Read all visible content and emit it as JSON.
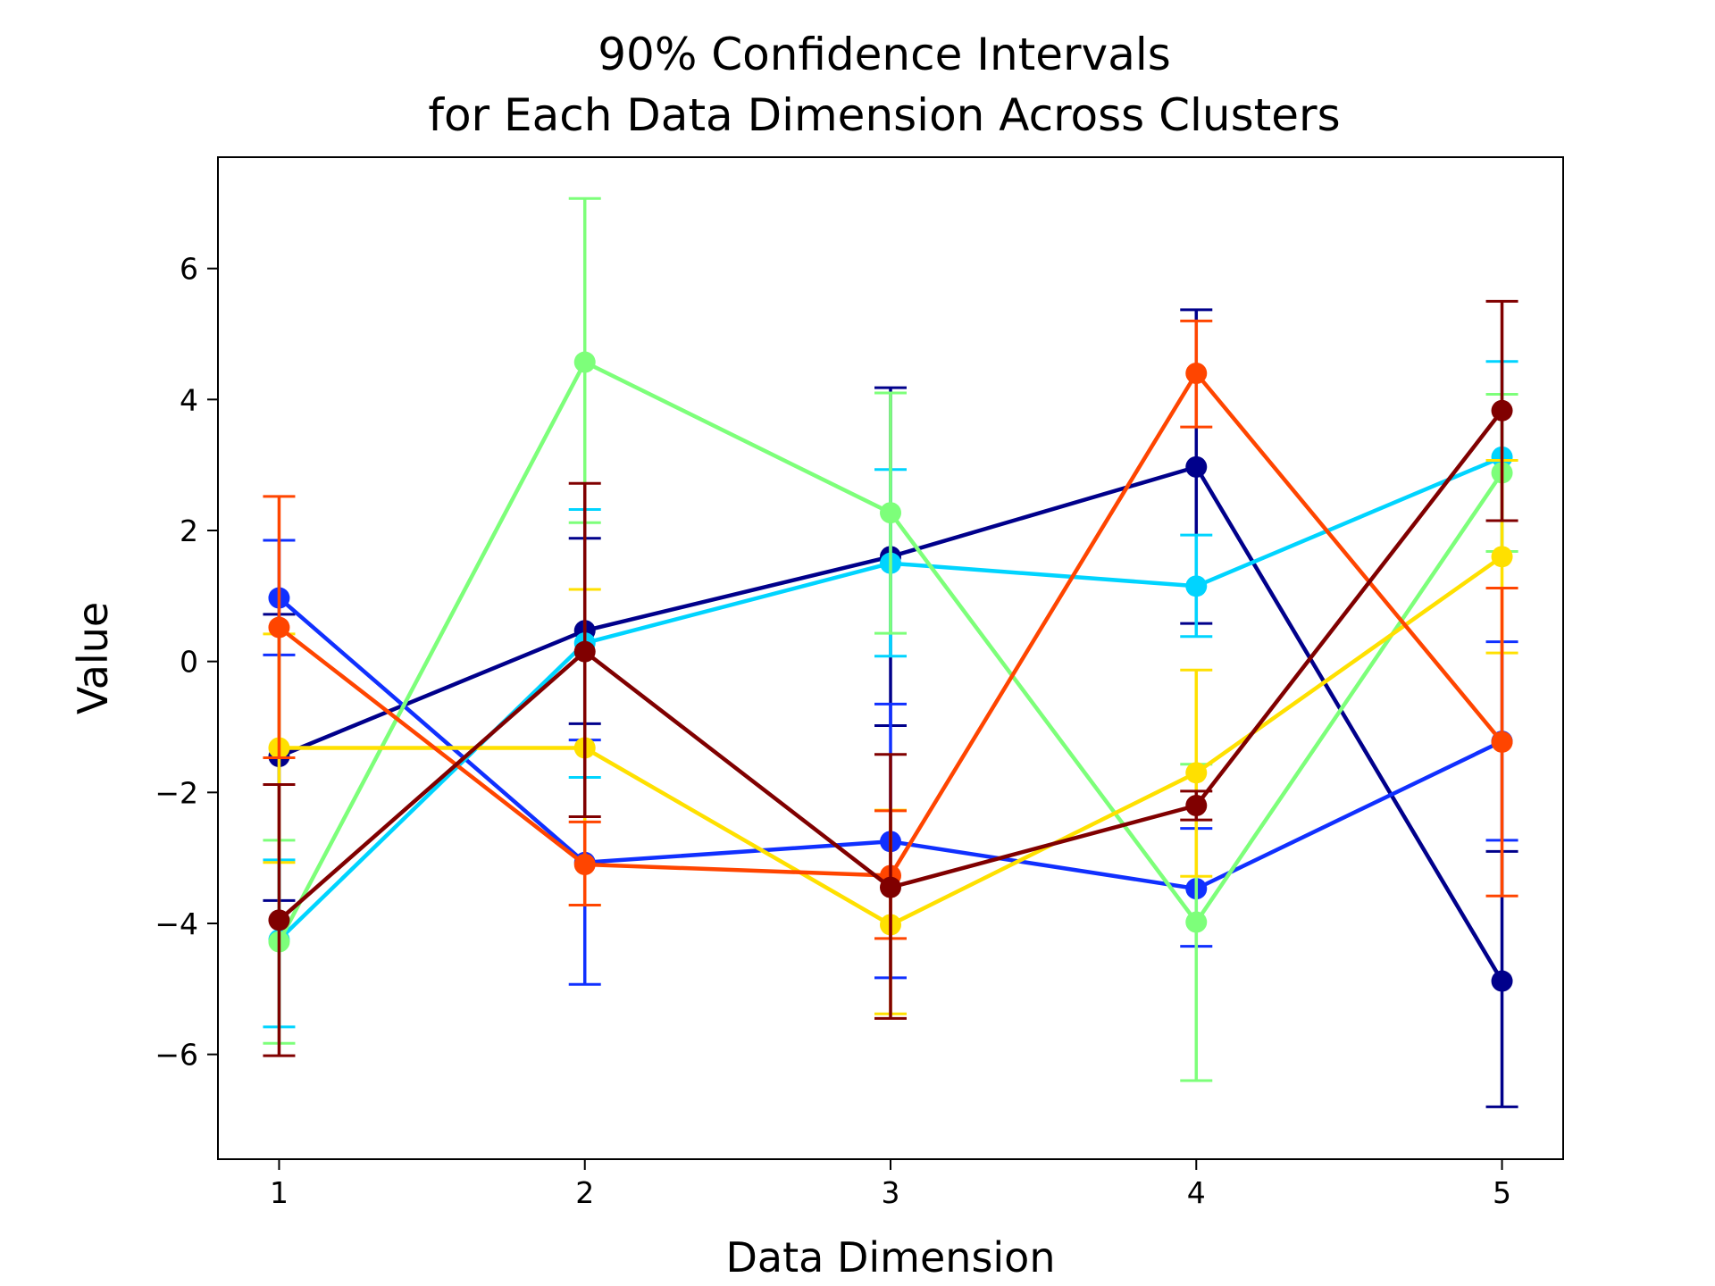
{
  "chart_data": {
    "type": "line",
    "title_lines": [
      "90% Confidence Intervals",
      "for Each Data Dimension Across Clusters"
    ],
    "xlabel": "Data Dimension",
    "ylabel": "Value",
    "x": [
      1,
      2,
      3,
      4,
      5
    ],
    "x_tick_labels": [
      "1",
      "2",
      "3",
      "4",
      "5"
    ],
    "xlim": [
      0.8,
      5.2
    ],
    "ylim": [
      -7.6,
      7.7
    ],
    "y_ticks": [
      -6,
      -4,
      -2,
      0,
      2,
      4,
      6
    ],
    "y_tick_labels": [
      "−6",
      "−4",
      "−2",
      "0",
      "2",
      "4",
      "6"
    ],
    "grid": false,
    "legend": "none",
    "series": [
      {
        "color": "#00008b",
        "values": [
          -1.45,
          0.47,
          1.6,
          2.97,
          -4.88
        ],
        "lower": [
          -3.65,
          -0.95,
          -0.98,
          0.58,
          -6.8
        ],
        "upper": [
          0.72,
          1.88,
          4.18,
          5.37,
          -2.9
        ]
      },
      {
        "color": "#1030ff",
        "values": [
          0.97,
          -3.07,
          -2.75,
          -3.47,
          -1.22
        ],
        "lower": [
          0.1,
          -4.93,
          -4.83,
          -4.35,
          -2.73
        ],
        "upper": [
          1.85,
          -1.2,
          -0.65,
          -2.55,
          0.3
        ]
      },
      {
        "color": "#00d4ff",
        "values": [
          -4.25,
          0.28,
          1.5,
          1.15,
          3.12
        ],
        "lower": [
          -5.58,
          -1.77,
          0.08,
          0.38,
          1.68
        ],
        "upper": [
          -3.03,
          2.32,
          2.93,
          1.93,
          4.58
        ]
      },
      {
        "color": "#7dff7a",
        "values": [
          -4.28,
          4.57,
          2.27,
          -3.98,
          2.88
        ],
        "lower": [
          -5.83,
          2.12,
          0.43,
          -6.4,
          1.68
        ],
        "upper": [
          -2.73,
          7.07,
          4.1,
          -1.57,
          4.08
        ]
      },
      {
        "color": "#ffe000",
        "values": [
          -1.32,
          -1.32,
          -4.02,
          -1.7,
          1.6
        ],
        "lower": [
          -3.07,
          -3.72,
          -5.38,
          -3.28,
          0.13
        ],
        "upper": [
          0.42,
          1.1,
          -2.27,
          -0.13,
          3.07
        ]
      },
      {
        "color": "#ff4500",
        "values": [
          0.52,
          -3.1,
          -3.27,
          4.4,
          -1.23
        ],
        "lower": [
          -1.47,
          -3.72,
          -4.23,
          3.58,
          -3.58
        ],
        "upper": [
          2.52,
          -2.45,
          -2.28,
          5.2,
          1.12
        ]
      },
      {
        "color": "#800000",
        "values": [
          -3.95,
          0.15,
          -3.45,
          -2.2,
          3.83
        ],
        "lower": [
          -6.02,
          -2.37,
          -5.45,
          -2.42,
          2.15
        ],
        "upper": [
          -1.88,
          2.72,
          -1.42,
          -1.98,
          5.5
        ]
      }
    ]
  }
}
